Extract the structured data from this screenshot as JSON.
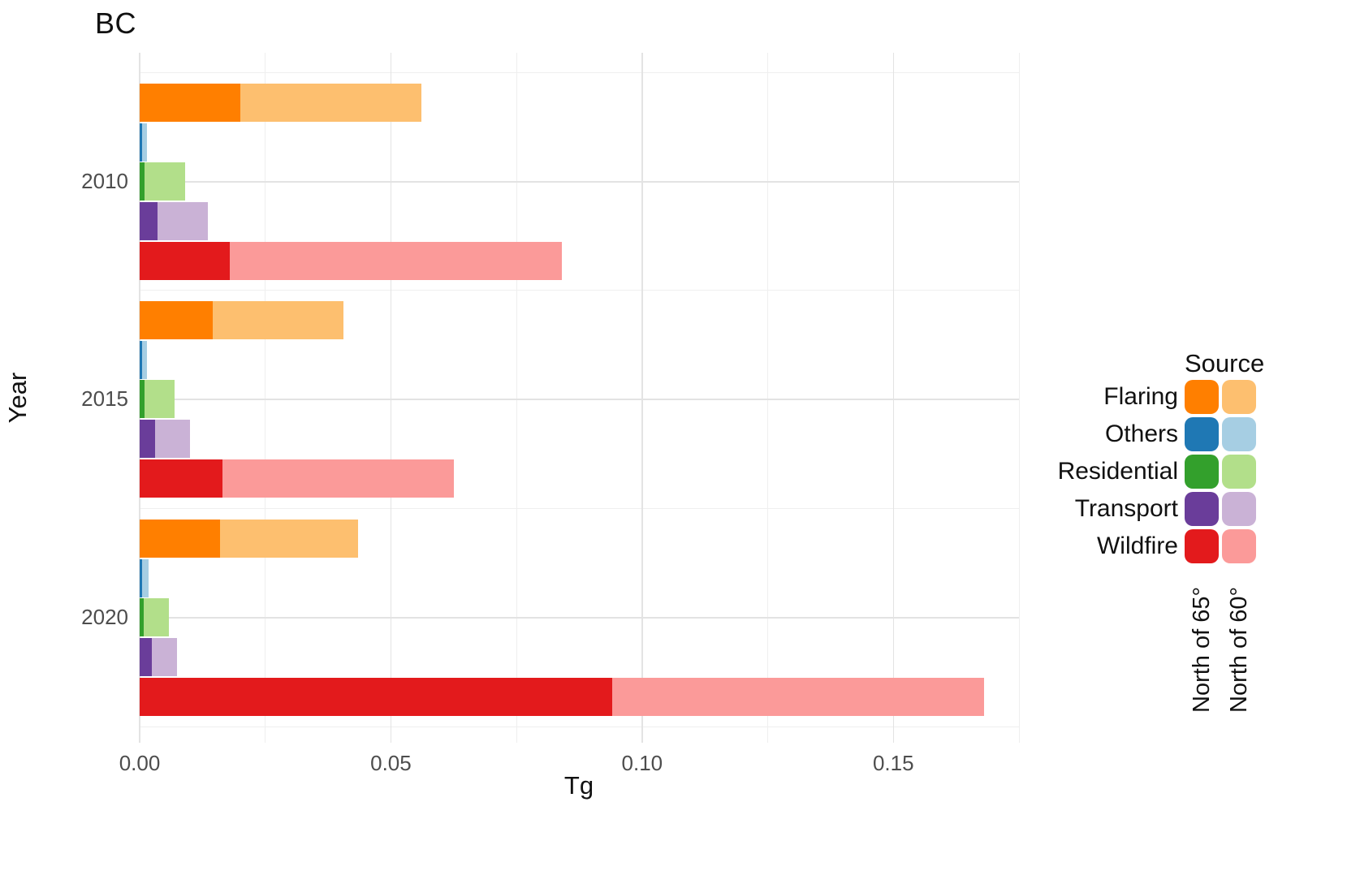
{
  "chart_data": {
    "type": "bar",
    "orientation": "horizontal",
    "title": "BC",
    "xlabel": "Tg",
    "ylabel": "Year",
    "xlim": [
      0,
      0.175
    ],
    "xticks": [
      "0.00",
      "0.05",
      "0.10",
      "0.15"
    ],
    "xtick_values": [
      0,
      0.05,
      0.1,
      0.15
    ],
    "x_minor_values": [
      0.025,
      0.075,
      0.125,
      0.175
    ],
    "grid": true,
    "legend": {
      "title": "Source",
      "position": "right",
      "column_labels": [
        "North of 65°",
        "North of 60°"
      ],
      "entries": [
        {
          "label": "Flaring",
          "dark": "#FF7F00",
          "light": "#FDBF6F"
        },
        {
          "label": "Others",
          "dark": "#1F78B4",
          "light": "#A6CEE3"
        },
        {
          "label": "Residential",
          "dark": "#33A02C",
          "light": "#B2DF8A"
        },
        {
          "label": "Transport",
          "dark": "#6A3D9A",
          "light": "#CAB2D6"
        },
        {
          "label": "Wildfire",
          "dark": "#E31A1C",
          "light": "#FB9A99"
        }
      ]
    },
    "groups": [
      {
        "year": "2010",
        "bars": [
          {
            "source": "Flaring",
            "north_of_65": 0.02,
            "north_of_60": 0.036
          },
          {
            "source": "Others",
            "north_of_65": 0.0005,
            "north_of_60": 0.001
          },
          {
            "source": "Residential",
            "north_of_65": 0.001,
            "north_of_60": 0.008
          },
          {
            "source": "Transport",
            "north_of_65": 0.0035,
            "north_of_60": 0.01
          },
          {
            "source": "Wildfire",
            "north_of_65": 0.018,
            "north_of_60": 0.066
          }
        ]
      },
      {
        "year": "2015",
        "bars": [
          {
            "source": "Flaring",
            "north_of_65": 0.0145,
            "north_of_60": 0.026
          },
          {
            "source": "Others",
            "north_of_65": 0.0005,
            "north_of_60": 0.001
          },
          {
            "source": "Residential",
            "north_of_65": 0.001,
            "north_of_60": 0.006
          },
          {
            "source": "Transport",
            "north_of_65": 0.003,
            "north_of_60": 0.007
          },
          {
            "source": "Wildfire",
            "north_of_65": 0.0165,
            "north_of_60": 0.046
          }
        ]
      },
      {
        "year": "2020",
        "bars": [
          {
            "source": "Flaring",
            "north_of_65": 0.016,
            "north_of_60": 0.0275
          },
          {
            "source": "Others",
            "north_of_65": 0.0005,
            "north_of_60": 0.0012
          },
          {
            "source": "Residential",
            "north_of_65": 0.0008,
            "north_of_60": 0.005
          },
          {
            "source": "Transport",
            "north_of_65": 0.0025,
            "north_of_60": 0.005
          },
          {
            "source": "Wildfire",
            "north_of_65": 0.094,
            "north_of_60": 0.074
          }
        ]
      }
    ]
  }
}
